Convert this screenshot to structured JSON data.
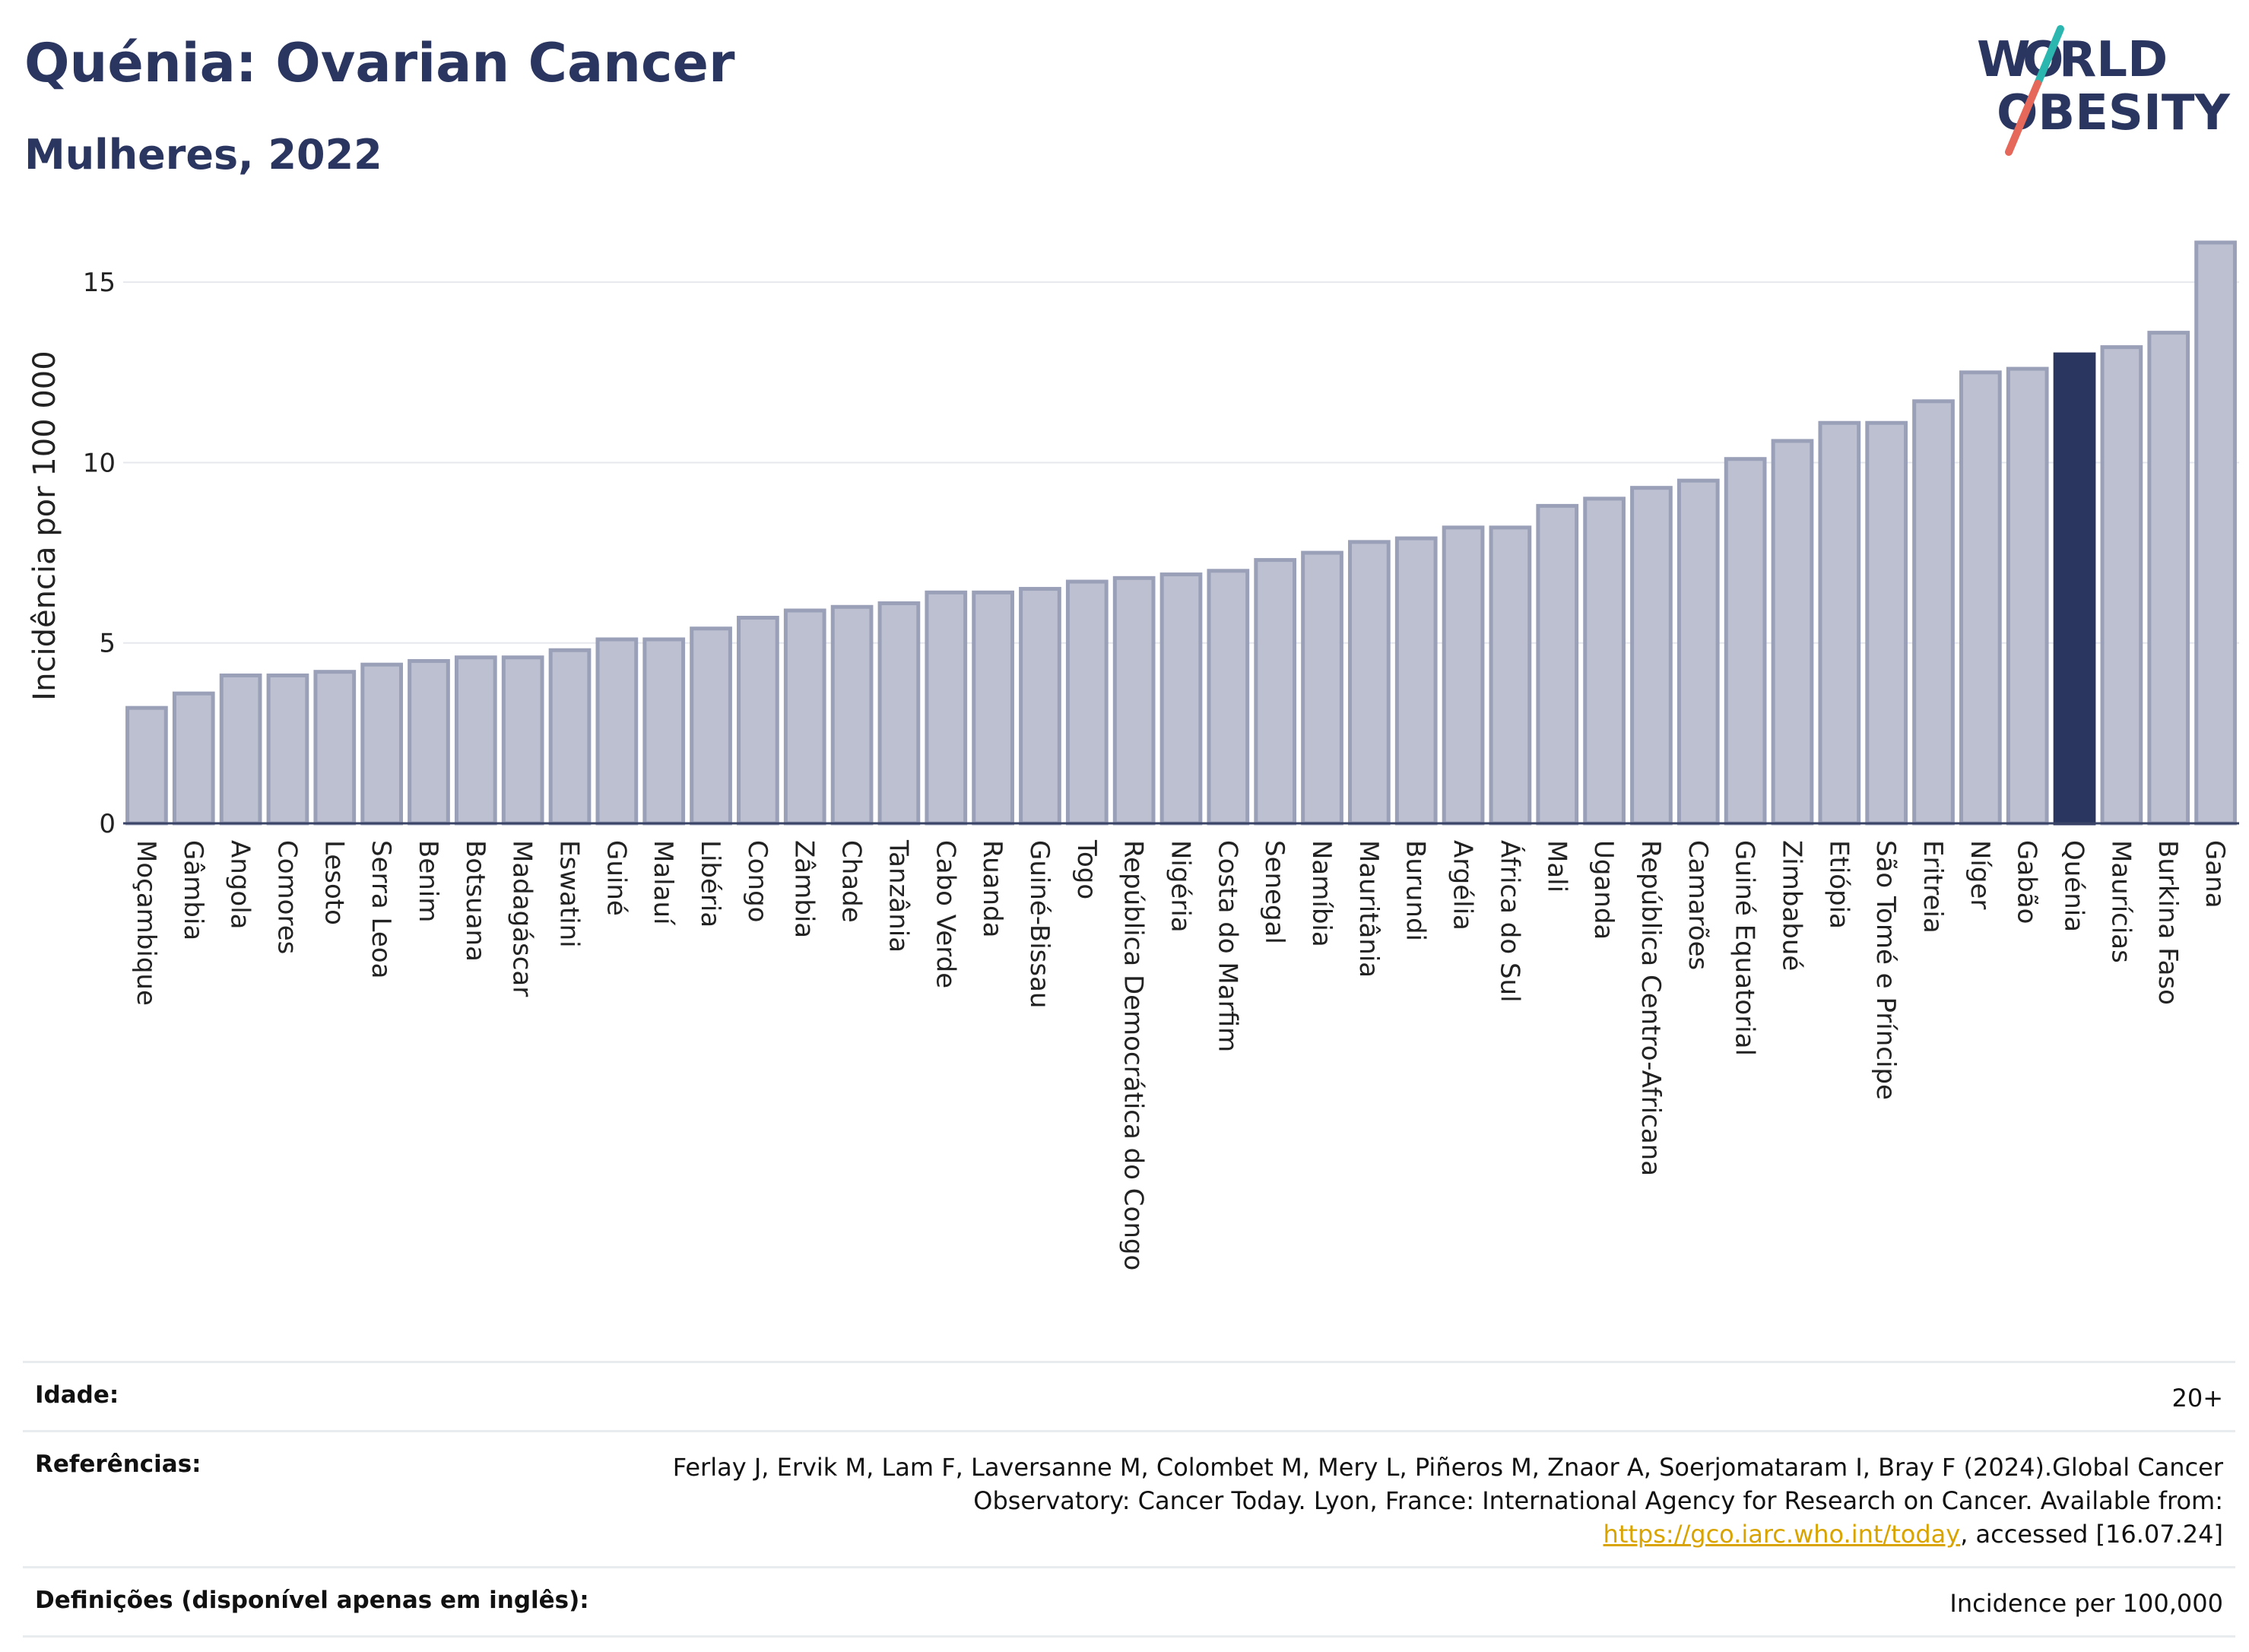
{
  "header": {
    "title": "Quénia: Ovarian Cancer",
    "subtitle": "Mulheres, 2022",
    "logo_text": [
      "W",
      "O",
      "RLD",
      "OBESITY"
    ]
  },
  "colors": {
    "title": "#2b3660",
    "bar": "#bcc0d0",
    "bar_stroke": "#9aa0b8",
    "highlight": "#2b3660",
    "logo_teal": "#2bb7b0",
    "logo_red": "#e5685a",
    "link": "#d9a300"
  },
  "chart_data": {
    "type": "bar",
    "ylabel": "Incidência por 100 000",
    "xlabel": "",
    "ylim": [
      0,
      16.5
    ],
    "yticks": [
      0,
      5,
      10,
      15
    ],
    "grid": true,
    "highlight": "Quénia",
    "categories": [
      "Moçambique",
      "Gâmbia",
      "Angola",
      "Comores",
      "Lesoto",
      "Serra Leoa",
      "Benim",
      "Botsuana",
      "Madagáscar",
      "Eswatini",
      "Guiné",
      "Malauí",
      "Libéria",
      "Congo",
      "Zâmbia",
      "Chade",
      "Tanzânia",
      "Cabo Verde",
      "Ruanda",
      "Guiné-Bissau",
      "Togo",
      "República Democrática do Congo",
      "Nigéria",
      "Costa do Marfim",
      "Senegal",
      "Namíbia",
      "Mauritânia",
      "Burundi",
      "Argélia",
      "África do Sul",
      "Mali",
      "Uganda",
      "República Centro-Africana",
      "Camarões",
      "Guiné Equatorial",
      "Zimbabué",
      "Etiópia",
      "São Tomé e Príncipe",
      "Eritreia",
      "Níger",
      "Gabão",
      "Quénia",
      "Maurícias",
      "Burkina Faso",
      "Gana"
    ],
    "values": [
      3.2,
      3.6,
      4.1,
      4.1,
      4.2,
      4.4,
      4.5,
      4.6,
      4.6,
      4.8,
      5.1,
      5.1,
      5.4,
      5.7,
      5.9,
      6.0,
      6.1,
      6.4,
      6.4,
      6.5,
      6.7,
      6.8,
      6.9,
      7.0,
      7.3,
      7.5,
      7.8,
      7.9,
      8.2,
      8.2,
      8.8,
      9.0,
      9.3,
      9.5,
      10.1,
      10.6,
      11.1,
      11.1,
      11.7,
      12.5,
      12.6,
      13.0,
      13.2,
      13.6,
      16.1
    ]
  },
  "footer": {
    "age_label": "Idade:",
    "age_value": "20+",
    "ref_label": "Referências:",
    "ref_text_1": "Ferlay J, Ervik M, Lam F, Laversanne M, Colombet M, Mery L, Piñeros M, Znaor A, Soerjomataram I, Bray F (2024).Global Cancer Observatory: Cancer Today. Lyon, France: International Agency for Research on Cancer. Available from: ",
    "ref_link": "https://gco.iarc.who.int/today",
    "ref_text_2": ", accessed [16.07.24]",
    "def_label": "Definições (disponível apenas em inglês):",
    "def_value": "Incidence per 100,000"
  }
}
